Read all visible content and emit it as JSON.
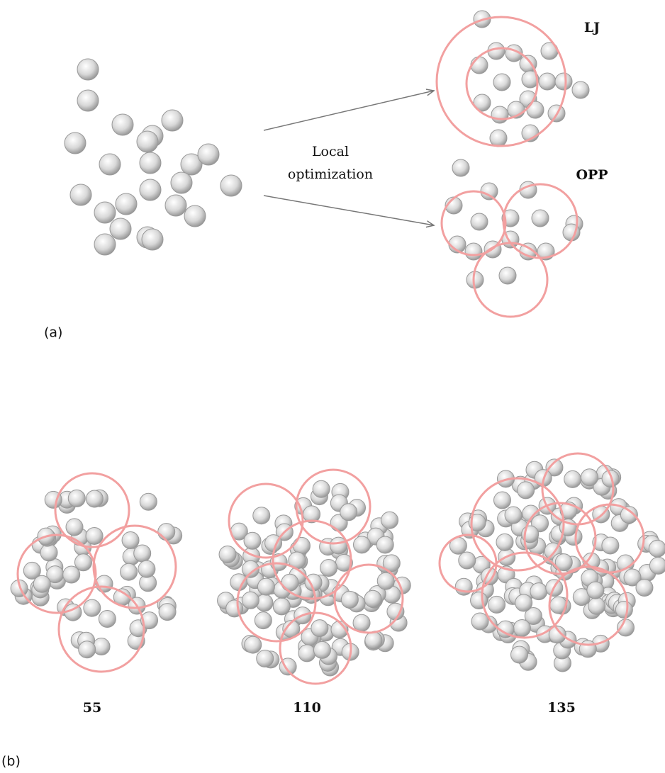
{
  "panel_a": {
    "label": "(a)",
    "arrow_label": [
      "Local",
      "optimization"
    ],
    "top_label": "LJ",
    "bottom_label": "OPP"
  },
  "panel_b": {
    "label": "(b)",
    "clusters": [
      {
        "label": "55"
      },
      {
        "label": "110"
      },
      {
        "label": "135"
      }
    ]
  }
}
